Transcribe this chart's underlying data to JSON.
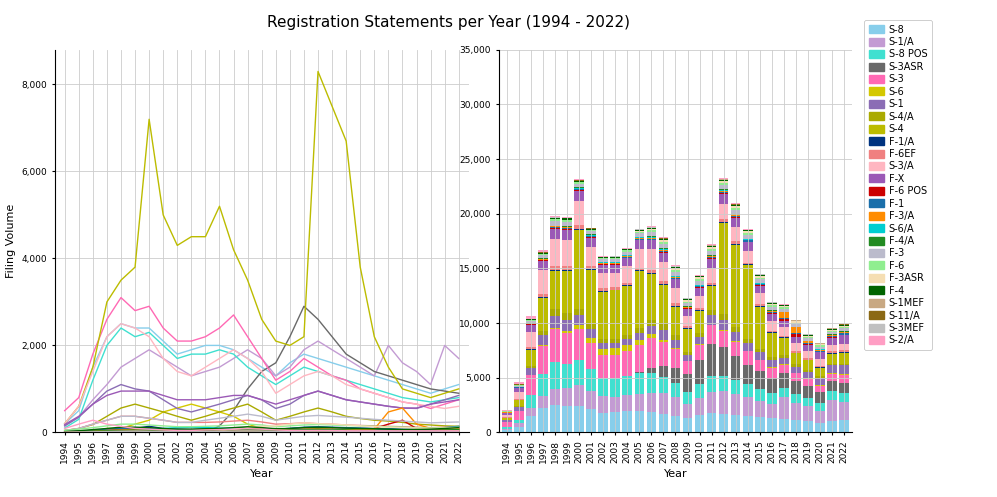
{
  "years": [
    1994,
    1995,
    1996,
    1997,
    1998,
    1999,
    2000,
    2001,
    2002,
    2003,
    2004,
    2005,
    2006,
    2007,
    2008,
    2009,
    2010,
    2011,
    2012,
    2013,
    2014,
    2015,
    2016,
    2017,
    2018,
    2019,
    2020,
    2021,
    2022
  ],
  "title": "Registration Statements per Year (1994 - 2022)",
  "xlabel": "Year",
  "ylabel": "Filing Volume",
  "categories": [
    "S-8",
    "S-1/A",
    "S-8 POS",
    "S-3ASR",
    "S-3",
    "S-6",
    "S-1",
    "S-4/A",
    "S-4",
    "F-1/A",
    "F-6EF",
    "S-3/A",
    "F-X",
    "F-6 POS",
    "F-1",
    "F-3/A",
    "S-6/A",
    "F-4/A",
    "F-3",
    "F-6",
    "F-3ASR",
    "F-4",
    "S-1MEF",
    "S-11/A",
    "S-3MEF",
    "S-2/A"
  ],
  "line_colors": {
    "S-8": "#87CEEB",
    "S-1/A": "#C39BD3",
    "S-8 POS": "#40E0D0",
    "S-3ASR": "#696969",
    "S-3": "#FF69B4",
    "S-6": "#D4C800",
    "S-1": "#8B6DB5",
    "S-4/A": "#AAAA00",
    "S-4": "#BCBC00",
    "F-1/A": "#003380",
    "F-6EF": "#F08080",
    "S-3/A": "#FFB6C1",
    "F-X": "#9B59B6",
    "F-6 POS": "#CC0000",
    "F-1": "#1A6FAA",
    "F-3/A": "#FF8C00",
    "S-6/A": "#00CED1",
    "F-4/A": "#228B22",
    "F-3": "#BBBBCC",
    "F-6": "#90EE90",
    "F-3ASR": "#F5DEB3",
    "F-4": "#006400",
    "S-1MEF": "#C8A882",
    "S-11/A": "#8B6914",
    "S-3MEF": "#C0C0C0",
    "S-2/A": "#FF9EC4"
  },
  "bar_colors": {
    "S-8": "#87CEEB",
    "S-1/A": "#C39BD3",
    "S-8 POS": "#40E0D0",
    "S-3ASR": "#696969",
    "S-3": "#FF69B4",
    "S-6": "#D4C800",
    "S-1": "#8B6DB5",
    "S-4/A": "#AAAA00",
    "S-4": "#BCBC00",
    "F-1/A": "#003380",
    "F-6EF": "#F08080",
    "S-3/A": "#FFB6C1",
    "F-X": "#9B59B6",
    "F-6 POS": "#CC0000",
    "F-1": "#1A6FAA",
    "F-3/A": "#FF8C00",
    "S-6/A": "#00CED1",
    "F-4/A": "#228B22",
    "F-3": "#BBBBCC",
    "F-6": "#90EE90",
    "F-3ASR": "#F5DEB3",
    "F-4": "#006400",
    "S-1MEF": "#C8A882",
    "S-11/A": "#8B6914",
    "S-3MEF": "#C0C0C0",
    "S-2/A": "#FF9EC4"
  },
  "series": {
    "S-4": [
      200,
      600,
      1500,
      3000,
      3500,
      3800,
      7200,
      5000,
      4300,
      4500,
      4500,
      5200,
      4200,
      3500,
      2600,
      2100,
      2000,
      2200,
      8300,
      7500,
      6700,
      3800,
      2200,
      1500,
      1000,
      900,
      800,
      900,
      1000
    ],
    "S-3": [
      500,
      800,
      1800,
      2600,
      3100,
      2800,
      2900,
      2400,
      2100,
      2100,
      2200,
      2400,
      2700,
      2200,
      1700,
      1200,
      1400,
      1700,
      1500,
      1300,
      1200,
      1000,
      900,
      800,
      700,
      650,
      550,
      650,
      750
    ],
    "S-8": [
      200,
      500,
      1500,
      2200,
      2500,
      2400,
      2400,
      2100,
      1800,
      1900,
      2000,
      2000,
      1900,
      1700,
      1500,
      1300,
      1600,
      1800,
      1700,
      1600,
      1500,
      1400,
      1300,
      1200,
      1100,
      1000,
      900,
      1000,
      1100
    ],
    "S-8 POS": [
      100,
      300,
      1200,
      2000,
      2400,
      2200,
      2300,
      2000,
      1700,
      1800,
      1800,
      1900,
      1800,
      1500,
      1300,
      1100,
      1300,
      1500,
      1400,
      1300,
      1200,
      1100,
      1000,
      900,
      800,
      750,
      700,
      750,
      800
    ],
    "S-3/A": [
      200,
      600,
      1400,
      2200,
      2500,
      2400,
      2200,
      1700,
      1400,
      1300,
      1500,
      1700,
      1900,
      1700,
      1400,
      900,
      1100,
      1300,
      1400,
      1300,
      1100,
      1000,
      900,
      800,
      700,
      650,
      600,
      550,
      600
    ],
    "S-1": [
      150,
      350,
      650,
      950,
      1100,
      1000,
      950,
      750,
      550,
      470,
      560,
      650,
      750,
      850,
      750,
      550,
      650,
      850,
      950,
      850,
      750,
      700,
      650,
      600,
      560,
      550,
      650,
      750,
      850
    ],
    "S-1/A": [
      150,
      350,
      750,
      1100,
      1500,
      1700,
      1900,
      1700,
      1500,
      1300,
      1400,
      1500,
      1700,
      1900,
      1700,
      1300,
      1500,
      1900,
      2100,
      1900,
      1700,
      1500,
      1300,
      2000,
      1600,
      1400,
      1100,
      2000,
      1700
    ],
    "F-X": [
      180,
      370,
      650,
      850,
      950,
      950,
      950,
      850,
      750,
      750,
      750,
      800,
      850,
      850,
      750,
      650,
      750,
      850,
      950,
      850,
      750,
      700,
      650,
      600,
      560,
      560,
      650,
      700,
      750
    ],
    "S-4/A": [
      40,
      90,
      180,
      370,
      560,
      650,
      560,
      470,
      370,
      280,
      370,
      470,
      560,
      650,
      470,
      280,
      370,
      470,
      560,
      470,
      370,
      320,
      280,
      260,
      230,
      190,
      170,
      150,
      140
    ],
    "S-3ASR": [
      0,
      0,
      0,
      0,
      0,
      0,
      0,
      0,
      0,
      0,
      0,
      150,
      500,
      1000,
      1400,
      1600,
      2200,
      2900,
      2600,
      2200,
      1800,
      1600,
      1400,
      1300,
      1200,
      1100,
      1000,
      950,
      900
    ],
    "S-6": [
      0,
      0,
      0,
      90,
      90,
      190,
      280,
      470,
      560,
      650,
      560,
      470,
      370,
      190,
      90,
      45,
      45,
      45,
      45,
      45,
      45,
      45,
      45,
      45,
      45,
      45,
      45,
      45,
      45
    ],
    "F-1/A": [
      10,
      18,
      28,
      45,
      75,
      90,
      140,
      90,
      75,
      65,
      75,
      85,
      90,
      110,
      90,
      75,
      90,
      110,
      120,
      110,
      100,
      90,
      85,
      75,
      65,
      65,
      75,
      90,
      110
    ],
    "F-6EF": [
      45,
      90,
      190,
      280,
      370,
      370,
      325,
      280,
      230,
      230,
      230,
      240,
      260,
      280,
      240,
      190,
      200,
      220,
      200,
      190,
      170,
      160,
      150,
      140,
      130,
      120,
      110,
      120,
      130
    ],
    "F-6 POS": [
      18,
      28,
      37,
      45,
      56,
      56,
      45,
      37,
      28,
      28,
      37,
      45,
      56,
      65,
      56,
      45,
      56,
      65,
      75,
      65,
      56,
      45,
      90,
      190,
      280,
      90,
      45,
      56,
      75
    ],
    "F-1": [
      18,
      28,
      45,
      75,
      90,
      110,
      90,
      75,
      56,
      56,
      65,
      75,
      90,
      110,
      90,
      75,
      90,
      120,
      130,
      120,
      110,
      100,
      90,
      85,
      75,
      75,
      85,
      110,
      140
    ],
    "F-3/A": [
      9,
      18,
      28,
      45,
      56,
      75,
      65,
      56,
      45,
      45,
      56,
      65,
      75,
      85,
      75,
      56,
      65,
      75,
      85,
      75,
      65,
      56,
      75,
      470,
      560,
      190,
      90,
      75,
      90
    ],
    "S-6/A": [
      0,
      0,
      0,
      18,
      28,
      37,
      56,
      90,
      110,
      120,
      110,
      100,
      90,
      75,
      56,
      37,
      37,
      37,
      37,
      28,
      28,
      28,
      18,
      18,
      18,
      18,
      18,
      18,
      18
    ],
    "F-4/A": [
      9,
      18,
      28,
      37,
      45,
      56,
      45,
      37,
      28,
      28,
      37,
      45,
      56,
      65,
      56,
      45,
      56,
      65,
      75,
      65,
      56,
      45,
      45,
      45,
      45,
      45,
      45,
      56,
      65
    ],
    "F-3": [
      45,
      90,
      190,
      280,
      370,
      370,
      325,
      280,
      230,
      230,
      280,
      325,
      370,
      420,
      370,
      280,
      325,
      370,
      390,
      370,
      350,
      325,
      300,
      280,
      260,
      240,
      220,
      230,
      240
    ],
    "F-6": [
      45,
      75,
      110,
      150,
      190,
      190,
      170,
      150,
      130,
      130,
      140,
      150,
      170,
      190,
      170,
      130,
      150,
      170,
      180,
      170,
      160,
      150,
      140,
      130,
      120,
      110,
      100,
      110,
      120
    ],
    "F-3ASR": [
      0,
      0,
      0,
      0,
      0,
      0,
      0,
      0,
      0,
      0,
      0,
      28,
      75,
      110,
      140,
      150,
      190,
      220,
      200,
      190,
      170,
      150,
      130,
      120,
      110,
      100,
      90,
      100,
      110
    ],
    "F-4": [
      18,
      37,
      65,
      90,
      120,
      120,
      110,
      90,
      75,
      75,
      85,
      90,
      110,
      130,
      110,
      85,
      90,
      110,
      120,
      110,
      100,
      90,
      85,
      75,
      65,
      65,
      75,
      90,
      110
    ],
    "S-1MEF": [
      4,
      9,
      14,
      18,
      23,
      28,
      23,
      18,
      14,
      14,
      18,
      23,
      28,
      32,
      28,
      18,
      23,
      28,
      32,
      28,
      23,
      18,
      18,
      18,
      14,
      14,
      14,
      18,
      23
    ],
    "S-11/A": [
      4,
      9,
      14,
      18,
      23,
      28,
      23,
      18,
      14,
      14,
      18,
      23,
      28,
      32,
      28,
      18,
      23,
      28,
      32,
      28,
      23,
      18,
      18,
      18,
      14,
      14,
      14,
      18,
      23
    ],
    "S-3MEF": [
      4,
      9,
      14,
      18,
      23,
      28,
      23,
      18,
      14,
      14,
      18,
      23,
      28,
      32,
      28,
      18,
      23,
      28,
      32,
      28,
      23,
      18,
      18,
      18,
      14,
      14,
      14,
      18,
      23
    ],
    "S-2/A": [
      90,
      190,
      280,
      190,
      140,
      90,
      75,
      56,
      45,
      45,
      56,
      65,
      75,
      85,
      75,
      56,
      45,
      45,
      45,
      45,
      37,
      37,
      37,
      37,
      37,
      37,
      37,
      37,
      37
    ]
  }
}
